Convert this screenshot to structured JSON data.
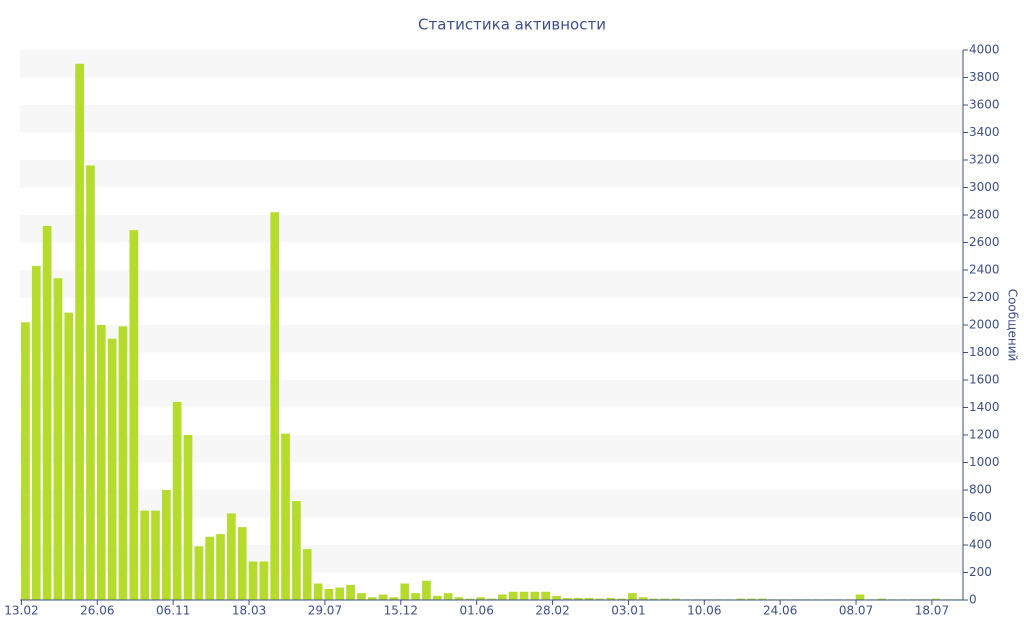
{
  "chart_data": {
    "type": "bar",
    "title": "Статистика активности",
    "y_label": "Сообщений",
    "categories": [
      "13.02",
      null,
      null,
      null,
      null,
      null,
      null,
      "26.06",
      null,
      null,
      null,
      null,
      null,
      null,
      "06.11",
      null,
      null,
      null,
      null,
      null,
      null,
      "18.03",
      null,
      null,
      null,
      null,
      null,
      null,
      "29.07",
      null,
      null,
      null,
      null,
      null,
      null,
      "15.12",
      null,
      null,
      null,
      null,
      null,
      null,
      "01.06",
      null,
      null,
      null,
      null,
      null,
      null,
      "28.02",
      null,
      null,
      null,
      null,
      null,
      null,
      "03.01",
      null,
      null,
      null,
      null,
      null,
      null,
      "10.06",
      null,
      null,
      null,
      null,
      null,
      null,
      "24.06",
      null,
      null,
      null,
      null,
      null,
      null,
      "08.07",
      null,
      null,
      null,
      null,
      null,
      null,
      "18.07",
      null,
      null
    ],
    "values": [
      2020,
      2430,
      2720,
      2340,
      2090,
      3900,
      3160,
      2000,
      1900,
      1990,
      2690,
      650,
      650,
      800,
      1440,
      1200,
      390,
      460,
      480,
      630,
      530,
      280,
      280,
      2820,
      1210,
      720,
      370,
      120,
      80,
      90,
      110,
      50,
      20,
      40,
      20,
      120,
      50,
      140,
      30,
      50,
      20,
      10,
      20,
      10,
      40,
      60,
      60,
      60,
      60,
      30,
      15,
      15,
      15,
      10,
      15,
      10,
      50,
      20,
      10,
      10,
      10,
      5,
      5,
      5,
      5,
      5,
      10,
      10,
      10,
      5,
      5,
      5,
      5,
      5,
      5,
      5,
      5,
      40,
      5,
      10,
      5,
      5,
      5,
      5,
      10,
      5,
      5
    ],
    "color": "#b5dc2c",
    "ylim": [
      0,
      4000
    ],
    "yticks": [
      0,
      200,
      400,
      600,
      800,
      1000,
      1200,
      1400,
      1600,
      1800,
      2000,
      2200,
      2400,
      2600,
      2800,
      3000,
      3200,
      3400,
      3600,
      3800,
      4000
    ],
    "grid": true
  }
}
